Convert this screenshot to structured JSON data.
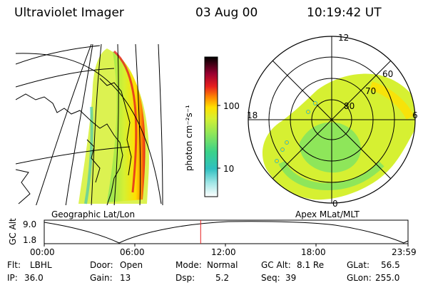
{
  "header": {
    "instrument": "Ultraviolet Imager",
    "date": "03 Aug 00",
    "time": "10:19:42 UT"
  },
  "colorbar": {
    "unit_label": "photon cm⁻²s⁻¹",
    "ticks": [
      "100",
      "10"
    ]
  },
  "panels": {
    "left_caption": "Geographic Lat/Lon",
    "right_caption": "Apex MLat/MLT"
  },
  "polar_labels": {
    "mlt_top": "12",
    "mlt_right": "6",
    "mlt_left": "18",
    "mlt_bottom": "0",
    "lat_60": "60",
    "lat_70": "70",
    "lat_80": "80"
  },
  "timeline": {
    "ylabel": "GC Alt",
    "y_max": "9.0",
    "y_min": "1.8",
    "ticks": [
      "00:00",
      "06:00",
      "12:00",
      "18:00",
      "23:59"
    ],
    "current_fraction": 0.43
  },
  "info": {
    "flt_label": "Flt:",
    "flt_value": "LBHL",
    "ip_label": "IP:",
    "ip_value": "36.0",
    "door_label": "Door:",
    "door_value": "Open",
    "gain_label": "Gain:",
    "gain_value": "13",
    "mode_label": "Mode:",
    "mode_value": "Normal",
    "dsp_label": "Dsp:",
    "dsp_value": "5.2",
    "gcalt_label": "GC Alt:",
    "gcalt_value": "8.1 Re",
    "seq_label": "Seq:",
    "seq_value": "39",
    "glat_label": "GLat:",
    "glat_value": "56.5",
    "glon_label": "GLon:",
    "glon_value": "255.0"
  },
  "colors": {
    "colorbar": [
      "#ffffff",
      "#9fe6e6",
      "#2fc0c0",
      "#3ad28a",
      "#8ee65a",
      "#d6f032",
      "#ffe000",
      "#ff8a00",
      "#e61e1e",
      "#9a0030",
      "#330033",
      "#000000"
    ]
  }
}
